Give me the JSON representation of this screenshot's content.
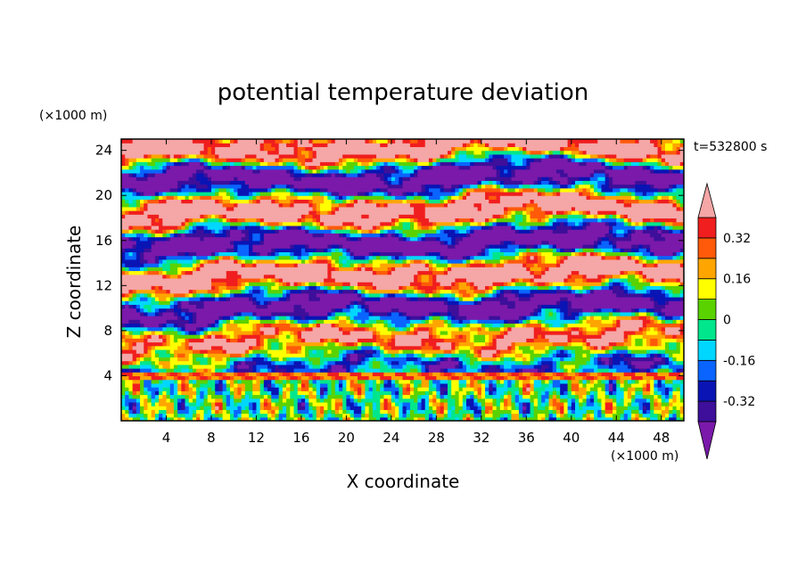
{
  "chart_data": {
    "type": "heatmap",
    "title": "potential temperature deviation",
    "xlabel": "X coordinate",
    "ylabel": "Z coordinate",
    "x_unit": "(×1000 m)",
    "y_unit": "(×1000 m)",
    "time_label": "t=532800 s",
    "xlim": [
      0,
      50
    ],
    "ylim": [
      0,
      25
    ],
    "x_ticks": [
      4,
      8,
      12,
      16,
      20,
      24,
      28,
      32,
      36,
      40,
      44,
      48
    ],
    "y_ticks": [
      4,
      8,
      12,
      16,
      20,
      24
    ],
    "colorbar": {
      "levels": [
        -0.4,
        -0.32,
        -0.24,
        -0.16,
        -0.08,
        0,
        0.08,
        0.16,
        0.24,
        0.32,
        0.4
      ],
      "labels": [
        "0.32",
        "0.16",
        "0",
        "-0.16",
        "-0.32"
      ],
      "label_values": [
        0.32,
        0.16,
        0,
        -0.16,
        -0.32
      ],
      "colors": [
        "#7a19aa",
        "#3d0f9a",
        "#0a14b4",
        "#0a64ff",
        "#00d7ff",
        "#00e68c",
        "#5ad200",
        "#ffff00",
        "#ffa500",
        "#ff5a0a",
        "#f01e1e",
        "#f5a6a6"
      ],
      "extend": "both"
    }
  }
}
